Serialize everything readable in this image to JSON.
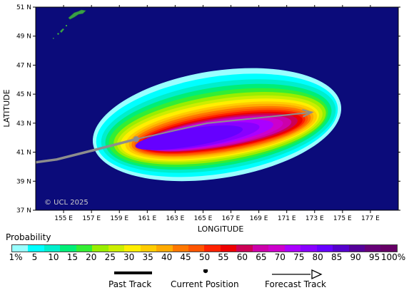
{
  "map": {
    "watermark": "© UCL 2025",
    "x_axis_title": "LONGITUDE",
    "y_axis_title": "LATITUDE",
    "lon_ticks": [
      "155 E",
      "157 E",
      "159 E",
      "161 E",
      "163 E",
      "165 E",
      "167 E",
      "169 E",
      "171 E",
      "173 E",
      "175 E",
      "177 E"
    ],
    "lat_ticks": [
      "51 N",
      "49 N",
      "47 N",
      "45 N",
      "43 N",
      "41 N",
      "39 N",
      "37 N"
    ],
    "lon_range": [
      153,
      179
    ],
    "lat_range": [
      37,
      51
    ],
    "colors": {
      "ocean": "#0b0b7a",
      "land": "#39a046",
      "track": "#8d8d8d",
      "current_position": "#8d8d8d",
      "frame": "#000000"
    },
    "past_track": [
      [
        153.0,
        40.3
      ],
      [
        154.5,
        40.5
      ],
      [
        157.0,
        41.1
      ],
      [
        160.2,
        41.9
      ]
    ],
    "current_position": [
      160.2,
      41.9
    ],
    "forecast_track": [
      [
        160.2,
        41.9
      ],
      [
        165.3,
        43.0
      ],
      [
        172.8,
        43.75
      ]
    ],
    "probability_field": {
      "center": [
        166.2,
        42.55
      ],
      "angle_deg": 9,
      "contours": [
        {
          "level": 1,
          "a": 9.0,
          "b": 3.7,
          "cx": 166.0,
          "cy": 42.9
        },
        {
          "level": 5,
          "a": 8.75,
          "b": 3.35,
          "cx": 166.0,
          "cy": 42.85
        },
        {
          "level": 10,
          "a": 8.5,
          "b": 3.0,
          "cx": 166.1,
          "cy": 42.8
        },
        {
          "level": 15,
          "a": 8.2,
          "b": 2.72,
          "cx": 166.1,
          "cy": 42.75
        },
        {
          "level": 20,
          "a": 7.95,
          "b": 2.47,
          "cx": 166.1,
          "cy": 42.7
        },
        {
          "level": 25,
          "a": 7.7,
          "b": 2.25,
          "cx": 166.2,
          "cy": 42.65
        },
        {
          "level": 30,
          "a": 7.45,
          "b": 2.05,
          "cx": 166.2,
          "cy": 42.6
        },
        {
          "level": 35,
          "a": 7.2,
          "b": 1.88,
          "cx": 166.2,
          "cy": 42.55
        },
        {
          "level": 40,
          "a": 6.95,
          "b": 1.72,
          "cx": 166.3,
          "cy": 42.5
        },
        {
          "level": 45,
          "a": 6.7,
          "b": 1.58,
          "cx": 166.3,
          "cy": 42.48
        },
        {
          "level": 50,
          "a": 6.5,
          "b": 1.45,
          "cx": 166.3,
          "cy": 42.45
        },
        {
          "level": 55,
          "a": 6.3,
          "b": 1.33,
          "cx": 166.3,
          "cy": 42.42
        },
        {
          "level": 60,
          "a": 6.1,
          "b": 1.22,
          "cx": 166.3,
          "cy": 42.4
        },
        {
          "level": 65,
          "a": 5.9,
          "b": 1.12,
          "cx": 166.3,
          "cy": 42.37
        },
        {
          "level": 70,
          "a": 5.65,
          "b": 1.03,
          "cx": 166.2,
          "cy": 42.35
        },
        {
          "level": 75,
          "a": 5.4,
          "b": 0.95,
          "cx": 166.0,
          "cy": 42.3
        },
        {
          "level": 80,
          "a": 5.1,
          "b": 0.88,
          "cx": 165.7,
          "cy": 42.25
        },
        {
          "level": 85,
          "a": 4.8,
          "b": 0.8,
          "cx": 165.3,
          "cy": 42.2
        },
        {
          "level": 90,
          "a": 4.4,
          "b": 0.72,
          "cx": 164.7,
          "cy": 42.1
        },
        {
          "level": 95,
          "a": 3.9,
          "b": 0.62,
          "cx": 164.0,
          "cy": 42.0
        }
      ]
    }
  },
  "legend": {
    "title": "Probability",
    "colors": [
      "#99ffff",
      "#00ffff",
      "#00eecc",
      "#00ee77",
      "#33ee33",
      "#99ee00",
      "#ccee00",
      "#ffee00",
      "#ffcc00",
      "#ffaa00",
      "#ff7700",
      "#ff5500",
      "#ff2200",
      "#ee0000",
      "#cc0055",
      "#cc00aa",
      "#cc00cc",
      "#aa00ff",
      "#8800ff",
      "#6600ff",
      "#5500cc",
      "#550099",
      "#660077",
      "#660066"
    ],
    "ticks": [
      "1%",
      "5",
      "10",
      "15",
      "20",
      "25",
      "30",
      "35",
      "40",
      "45",
      "50",
      "55",
      "60",
      "65",
      "70",
      "75",
      "80",
      "85",
      "90",
      "95",
      "100%"
    ]
  },
  "key": {
    "past_track": "Past Track",
    "current_position": "Current Position",
    "forecast_track": "Forecast Track"
  }
}
